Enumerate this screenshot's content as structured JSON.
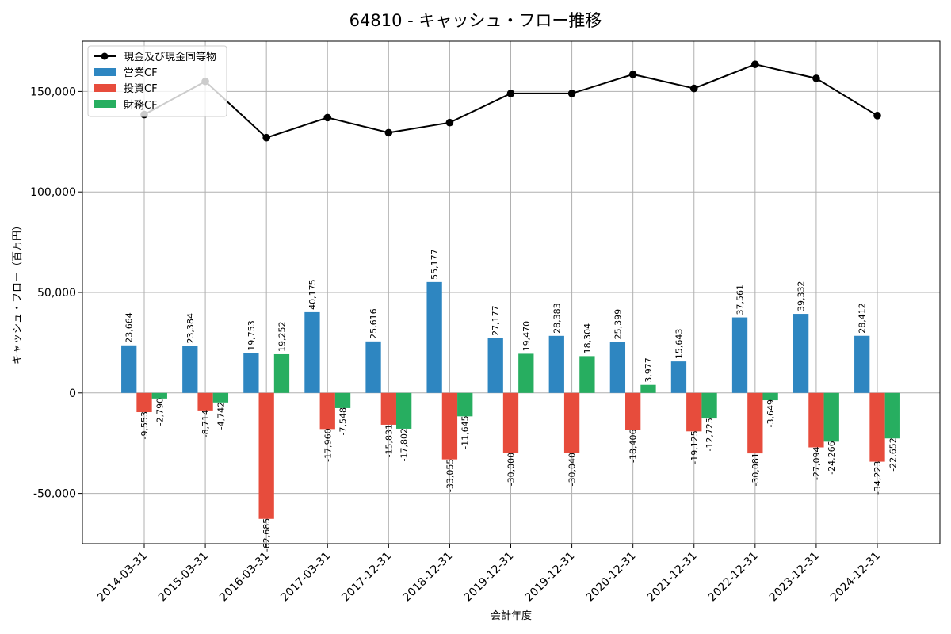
{
  "chart_data": {
    "type": "bar",
    "title": "64810 - キャッシュ・フロー推移",
    "xlabel": "会計年度",
    "ylabel": "キャッシュ・フロー（百万円）",
    "ylim": [
      -75000,
      175000
    ],
    "yticks": [
      -50000,
      0,
      50000,
      100000,
      150000
    ],
    "ytick_labels": [
      "-50,000",
      "0",
      "50,000",
      "100,000",
      "150,000"
    ],
    "grid": true,
    "legend_position": "top-left",
    "categories": [
      "2014-03-31",
      "2015-03-31",
      "2016-03-31",
      "2017-03-31",
      "2017-12-31",
      "2018-12-31",
      "2019-12-31",
      "2019-12-31",
      "2020-12-31",
      "2021-12-31",
      "2022-12-31",
      "2023-12-31",
      "2024-12-31"
    ],
    "series": [
      {
        "name": "営業CF",
        "type": "bar",
        "color": "#2e86c1",
        "values": [
          23664,
          23384,
          19753,
          40175,
          25616,
          55177,
          27177,
          28383,
          25399,
          15643,
          37561,
          39332,
          28412
        ],
        "labels": [
          "23,664",
          "23,384",
          "19,753",
          "40,175",
          "25,616",
          "55,177",
          "27,177",
          "28,383",
          "25,399",
          "15,643",
          "37,561",
          "39,332",
          "28,412"
        ]
      },
      {
        "name": "投資CF",
        "type": "bar",
        "color": "#e74c3c",
        "values": [
          -9553,
          -8714,
          -62685,
          -17960,
          -15831,
          -33055,
          -30000,
          -30040,
          -18406,
          -19125,
          -30081,
          -27094,
          -34223
        ],
        "labels": [
          "-9,553",
          "-8,714",
          "-62,685",
          "-17,960",
          "-15,831",
          "-33,055",
          "-30,000",
          "-30,040",
          "-18,406",
          "-19,125",
          "-30,081",
          "-27,094",
          "-34,223"
        ]
      },
      {
        "name": "財務CF",
        "type": "bar",
        "color": "#27ae60",
        "values": [
          -2790,
          -4742,
          19252,
          -7548,
          -17802,
          -11645,
          19470,
          18304,
          3977,
          -12725,
          -3649,
          -24266,
          -22652
        ],
        "labels": [
          "-2,790",
          "-4,742",
          "19,252",
          "-7,548",
          "-17,802",
          "-11,645",
          "19,470",
          "18,304",
          "3,977",
          "-12,725",
          "-3,649",
          "-24,266",
          "-22,652"
        ]
      },
      {
        "name": "現金及び現金同等物",
        "type": "line",
        "color": "#000000",
        "values": [
          138500,
          155000,
          127000,
          137000,
          129500,
          134500,
          149000,
          149000,
          158500,
          151500,
          163500,
          156500,
          138000
        ]
      }
    ]
  }
}
